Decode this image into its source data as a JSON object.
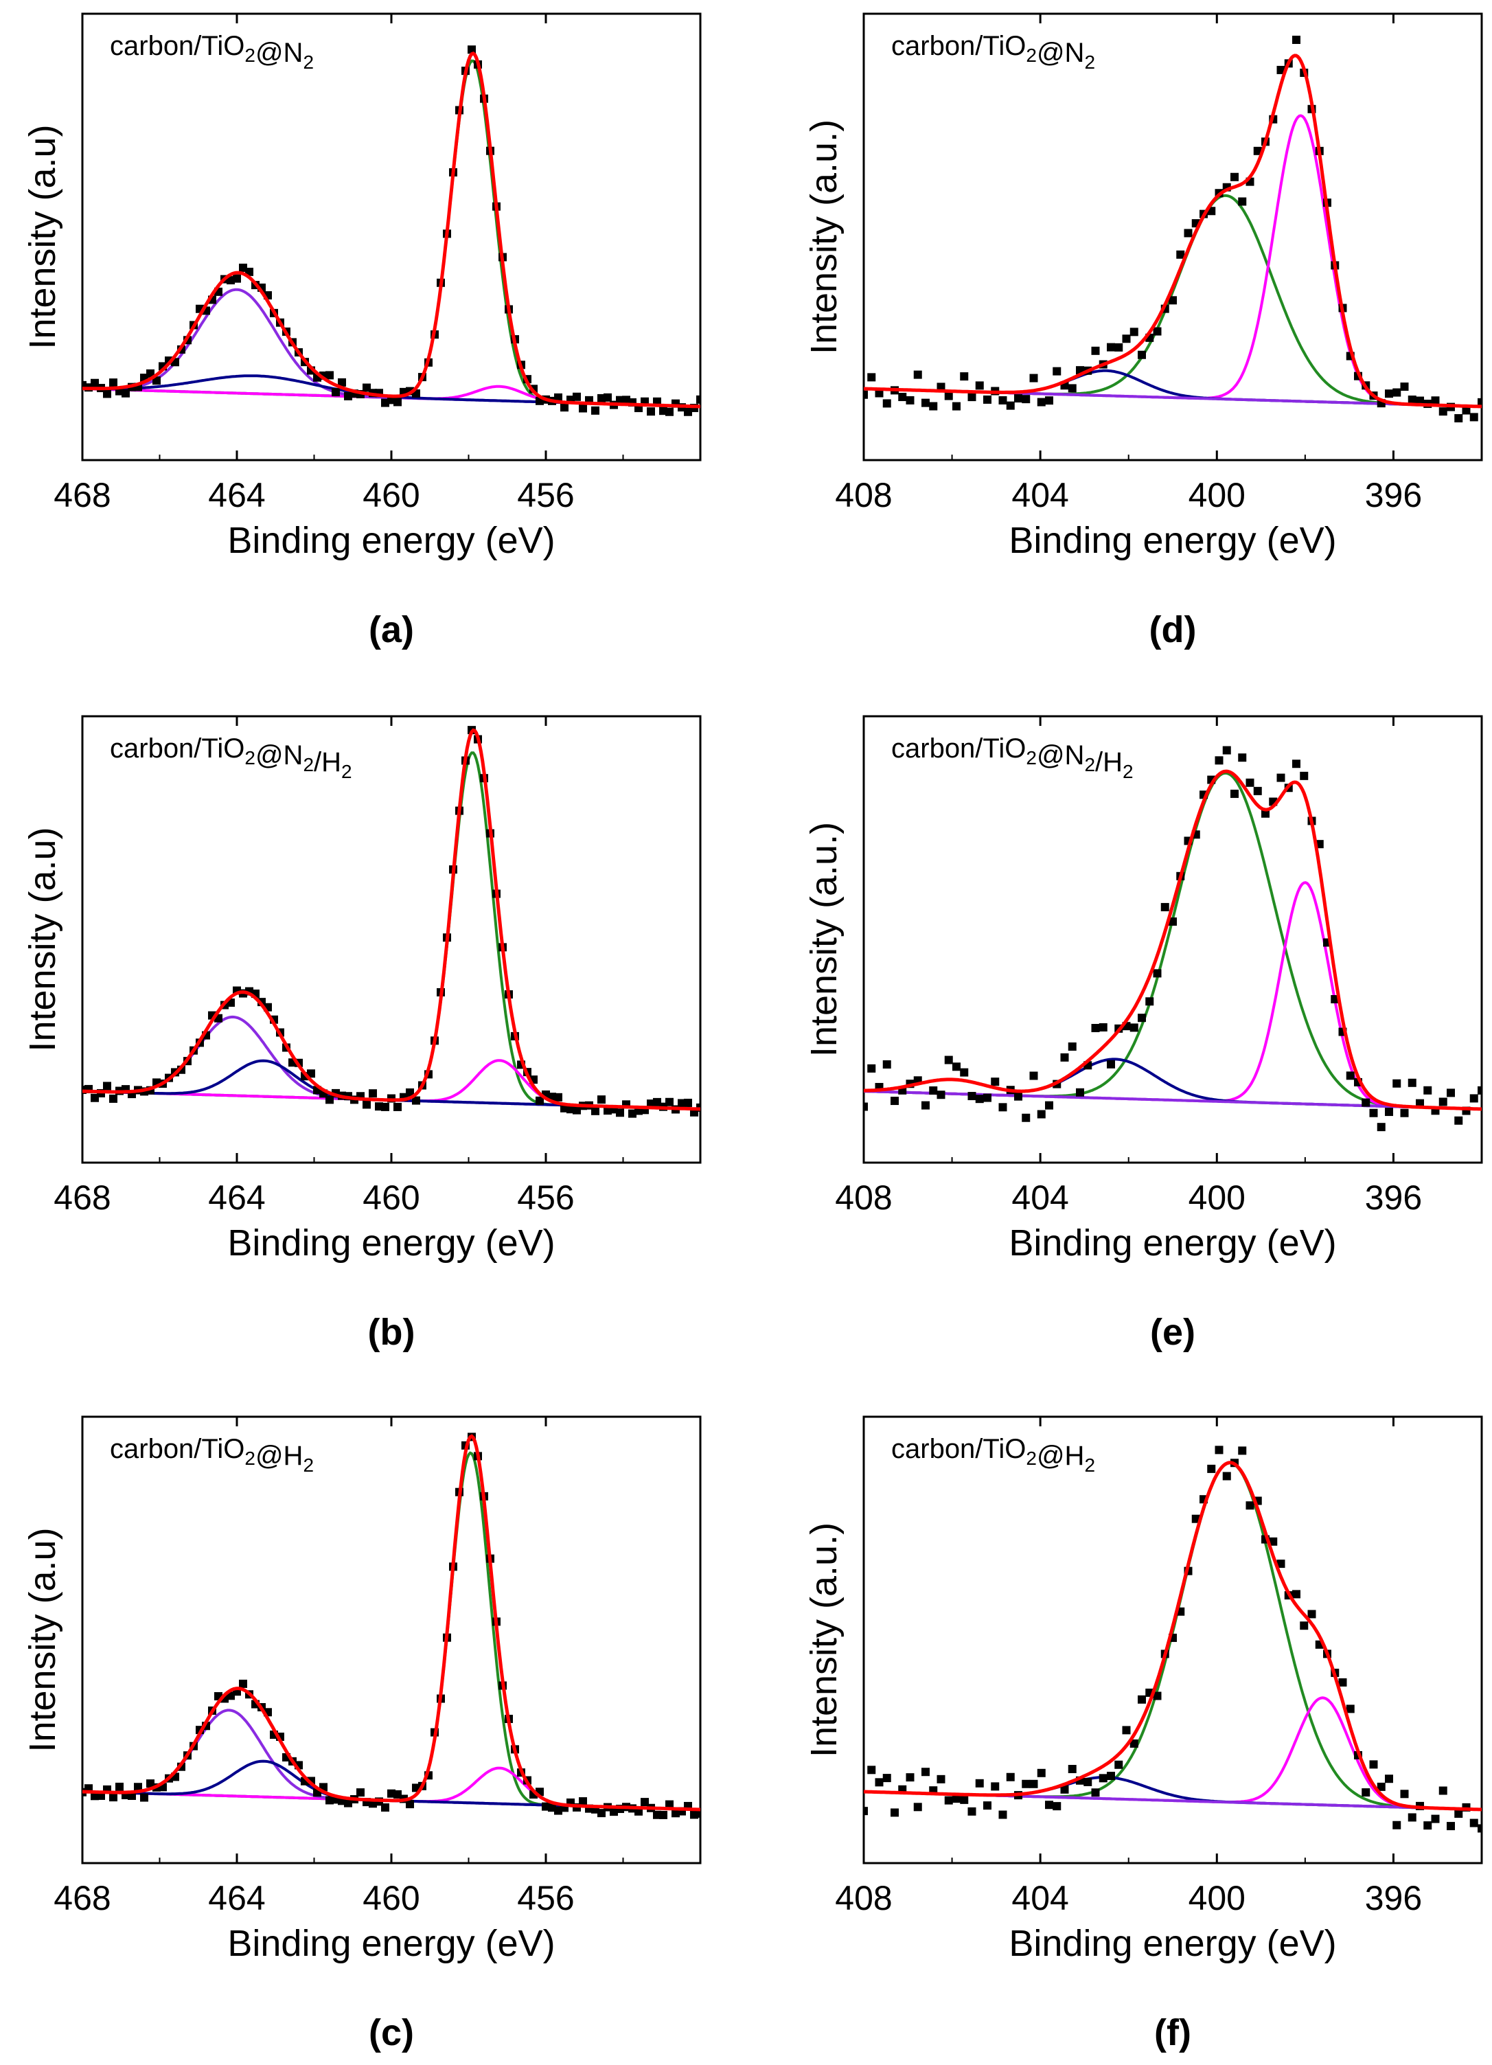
{
  "figure": {
    "panels": [
      {
        "id": "a",
        "label": "(a)",
        "sample": {
          "pre": "carbon/TiO",
          "sub1": "2",
          "mid": "@N",
          "sub2": "2",
          "post": ""
        }
      },
      {
        "id": "b",
        "label": "(b)",
        "sample": {
          "pre": "carbon/TiO",
          "sub1": "2",
          "mid": "@N",
          "sub2": "2",
          "post": "/H",
          "sub3": "2"
        }
      },
      {
        "id": "c",
        "label": "(c)",
        "sample": {
          "pre": "carbon/TiO",
          "sub1": "2",
          "mid": "@H",
          "sub2": "2",
          "post": ""
        }
      },
      {
        "id": "d",
        "label": "(d)",
        "sample": {
          "pre": "carbon/TiO",
          "sub1": "2",
          "mid": "@N",
          "sub2": "2",
          "post": ""
        }
      },
      {
        "id": "e",
        "label": "(e)",
        "sample": {
          "pre": "carbon/TiO",
          "sub1": "2",
          "mid": "@N",
          "sub2": "2",
          "post": "/H",
          "sub3": "2"
        }
      },
      {
        "id": "f",
        "label": "(f)",
        "sample": {
          "pre": "carbon/TiO",
          "sub1": "2",
          "mid": "@H",
          "sub2": "2",
          "post": ""
        }
      }
    ],
    "colors": {
      "data": "#000000",
      "envelope": "#ff0000",
      "green": "#228b22",
      "magenta": "#ff00ff",
      "purple": "#8a2be2",
      "navy": "#00008b"
    }
  },
  "chart_data": [
    {
      "type": "line",
      "panel": "a",
      "title": "carbon/TiO2@N2",
      "xlabel": "Binding energy (eV)",
      "ylabel": "Intensity (a.u)",
      "xlim": [
        468,
        452
      ],
      "ylim": [
        -0.15,
        1.1
      ],
      "xticks": [
        468,
        464,
        460,
        456
      ],
      "background": [
        0.05,
        0.0
      ],
      "components": [
        {
          "name": "green",
          "color": "#228b22",
          "peaks": [
            [
              457.9,
              0.95,
              0.55
            ]
          ]
        },
        {
          "name": "magenta",
          "color": "#ff00ff",
          "peaks": [
            [
              457.2,
              0.04,
              0.6
            ]
          ]
        },
        {
          "name": "purple",
          "color": "#8a2be2",
          "peaks": [
            [
              464.0,
              0.29,
              1.0
            ]
          ]
        },
        {
          "name": "navy",
          "color": "#00008b",
          "peaks": [
            [
              463.5,
              0.05,
              1.5
            ]
          ]
        }
      ],
      "noise": 0.008
    },
    {
      "type": "line",
      "panel": "b",
      "title": "carbon/TiO2@N2/H2",
      "xlabel": "Binding energy (eV)",
      "ylabel": "Intensity (a.u)",
      "xlim": [
        468,
        452
      ],
      "ylim": [
        -0.15,
        1.1
      ],
      "xticks": [
        468,
        464,
        460,
        456
      ],
      "background": [
        0.05,
        0.0
      ],
      "components": [
        {
          "name": "green",
          "color": "#228b22",
          "peaks": [
            [
              457.9,
              0.98,
              0.52
            ]
          ]
        },
        {
          "name": "magenta",
          "color": "#ff00ff",
          "peaks": [
            [
              457.2,
              0.12,
              0.6
            ]
          ]
        },
        {
          "name": "purple",
          "color": "#8a2be2",
          "peaks": [
            [
              464.1,
              0.22,
              0.9
            ]
          ]
        },
        {
          "name": "navy",
          "color": "#00008b",
          "peaks": [
            [
              463.3,
              0.1,
              0.8
            ]
          ]
        }
      ],
      "noise": 0.008
    },
    {
      "type": "line",
      "panel": "c",
      "title": "carbon/TiO2@H2",
      "xlabel": "Binding energy (eV)",
      "ylabel": "Intensity (a.u)",
      "xlim": [
        468,
        452
      ],
      "ylim": [
        -0.15,
        1.1
      ],
      "xticks": [
        468,
        464,
        460,
        456
      ],
      "background": [
        0.05,
        0.0
      ],
      "components": [
        {
          "name": "green",
          "color": "#228b22",
          "peaks": [
            [
              457.95,
              0.98,
              0.5
            ]
          ]
        },
        {
          "name": "magenta",
          "color": "#ff00ff",
          "peaks": [
            [
              457.2,
              0.1,
              0.6
            ]
          ]
        },
        {
          "name": "purple",
          "color": "#8a2be2",
          "peaks": [
            [
              464.2,
              0.24,
              0.85
            ]
          ]
        },
        {
          "name": "navy",
          "color": "#00008b",
          "peaks": [
            [
              463.3,
              0.1,
              0.8
            ]
          ]
        }
      ],
      "noise": 0.008
    },
    {
      "type": "line",
      "panel": "d",
      "title": "carbon/TiO2@N2",
      "xlabel": "Binding energy (eV)",
      "ylabel": "Intensity (a.u.)",
      "xlim": [
        408,
        394
      ],
      "ylim": [
        -0.15,
        1.1
      ],
      "xticks": [
        408,
        404,
        400,
        396
      ],
      "background": [
        0.05,
        0.0
      ],
      "components": [
        {
          "name": "green",
          "color": "#228b22",
          "peaks": [
            [
              399.8,
              0.57,
              1.05
            ]
          ]
        },
        {
          "name": "magenta",
          "color": "#ff00ff",
          "peaks": [
            [
              398.1,
              0.8,
              0.6
            ]
          ]
        },
        {
          "name": "navy",
          "color": "#00008b",
          "peaks": [
            [
              402.5,
              0.07,
              0.8
            ]
          ]
        },
        {
          "name": "purple",
          "color": "#8a2be2",
          "peaks": []
        }
      ],
      "noise": 0.02
    },
    {
      "type": "line",
      "panel": "e",
      "title": "carbon/TiO2@N2/H2",
      "xlabel": "Binding energy (eV)",
      "ylabel": "Intensity (a.u.)",
      "xlim": [
        408,
        394
      ],
      "ylim": [
        -0.15,
        1.1
      ],
      "xticks": [
        408,
        404,
        400,
        396
      ],
      "background": [
        0.05,
        0.0
      ],
      "components": [
        {
          "name": "green",
          "color": "#228b22",
          "peaks": [
            [
              399.8,
              0.92,
              1.1
            ]
          ]
        },
        {
          "name": "magenta",
          "color": "#ff00ff",
          "peaks": [
            [
              398.0,
              0.62,
              0.55
            ]
          ]
        },
        {
          "name": "navy",
          "color": "#00008b",
          "peaks": [
            [
              402.3,
              0.11,
              0.9
            ],
            [
              406.0,
              0.04,
              0.8
            ]
          ]
        },
        {
          "name": "purple",
          "color": "#8a2be2",
          "peaks": []
        }
      ],
      "noise": 0.03
    },
    {
      "type": "line",
      "panel": "f",
      "title": "carbon/TiO2@H2",
      "xlabel": "Binding energy (eV)",
      "ylabel": "Intensity (a.u.)",
      "xlim": [
        408,
        394
      ],
      "ylim": [
        -0.15,
        1.1
      ],
      "xticks": [
        408,
        404,
        400,
        396
      ],
      "background": [
        0.05,
        0.0
      ],
      "components": [
        {
          "name": "green",
          "color": "#228b22",
          "peaks": [
            [
              399.7,
              0.95,
              1.1
            ]
          ]
        },
        {
          "name": "magenta",
          "color": "#ff00ff",
          "peaks": [
            [
              397.6,
              0.3,
              0.6
            ]
          ]
        },
        {
          "name": "navy",
          "color": "#00008b",
          "peaks": [
            [
              402.5,
              0.06,
              0.9
            ]
          ]
        },
        {
          "name": "purple",
          "color": "#8a2be2",
          "peaks": []
        }
      ],
      "noise": 0.025
    }
  ]
}
